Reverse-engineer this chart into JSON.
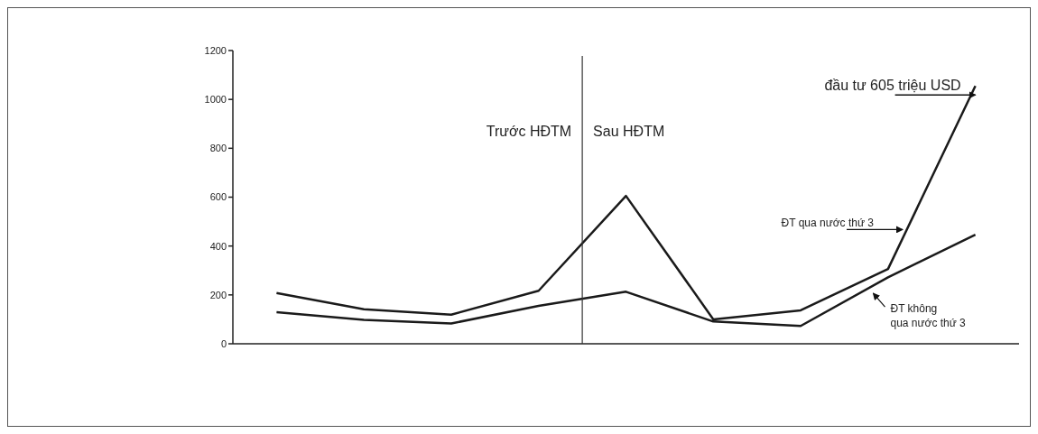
{
  "chart_data": {
    "type": "line",
    "categories": [
      null,
      null,
      null,
      null,
      null,
      null,
      null,
      null,
      null
    ],
    "ylim": [
      0,
      1200
    ],
    "yticks": [
      0,
      200,
      400,
      600,
      800,
      1000,
      1200
    ],
    "tick_labels": "y",
    "grid": false,
    "legend": false,
    "marker": "none",
    "line_style": "solid",
    "series": [
      {
        "name": "ĐT qua nước thứ 3",
        "color": "#1a1a1a",
        "values": [
          208,
          141,
          119,
          217,
          605,
          100,
          137,
          306,
          1055
        ]
      },
      {
        "name": "ĐT không qua nước thứ 3",
        "color": "#1a1a1a",
        "values": [
          129,
          98,
          83,
          155,
          213,
          91,
          73,
          272,
          446
        ]
      }
    ],
    "annotations": [
      "Trước HĐTM",
      "Sau HĐTM",
      "đầu tư 605 triệu USD"
    ]
  }
}
